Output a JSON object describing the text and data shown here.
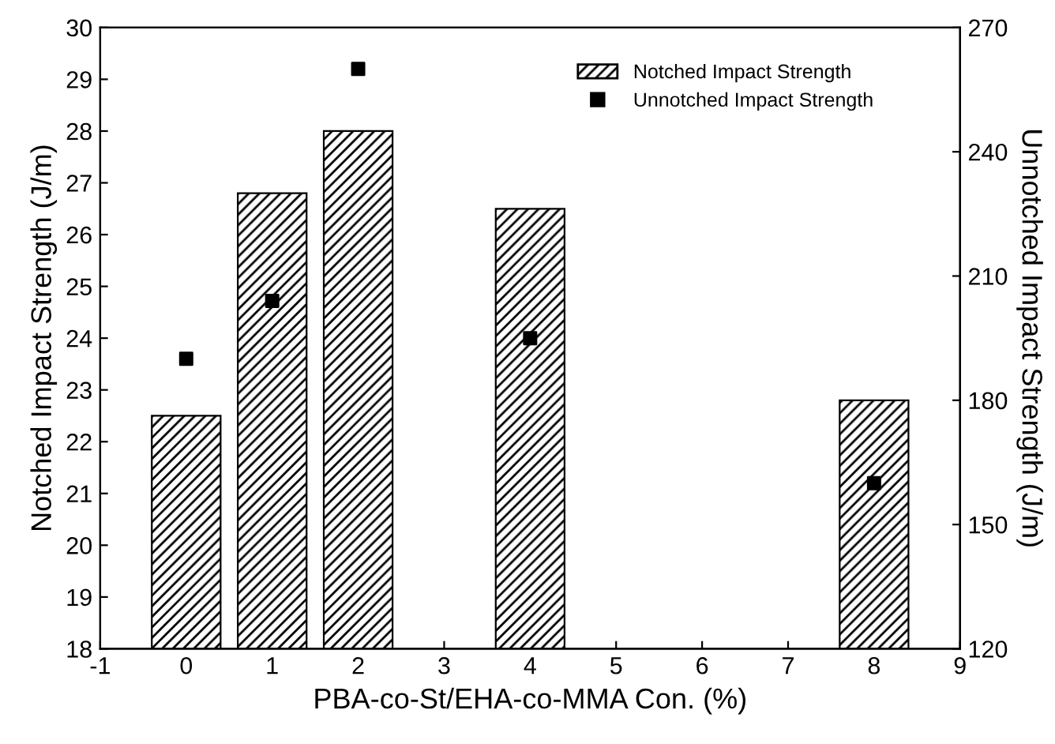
{
  "chart_data": {
    "type": "bar",
    "xlabel": "PBA-co-St/EHA-co-MMA Con. (%)",
    "ylabel": "Notched Impact Strength (J/m)",
    "y2label": "Unnotched Impact Strength (J/m)",
    "x": [
      0,
      1,
      2,
      4,
      8
    ],
    "series": [
      {
        "name": "Notched Impact Strength",
        "color": "#000000",
        "values": [
          22.5,
          26.8,
          28.0,
          26.5,
          22.8
        ]
      },
      {
        "name": "Unnotched Impact Strength",
        "type": "scatter",
        "axis": "y2",
        "color": "#000000",
        "marker": "square",
        "values": [
          190,
          204,
          260,
          195,
          160
        ]
      }
    ],
    "xlim": [
      -1,
      9
    ],
    "xticks": [
      -1,
      0,
      1,
      2,
      3,
      4,
      5,
      6,
      7,
      8,
      9
    ],
    "ylim": [
      18,
      30
    ],
    "yticks": [
      18,
      19,
      20,
      21,
      22,
      23,
      24,
      25,
      26,
      27,
      28,
      29,
      30
    ],
    "y2lim": [
      120,
      270
    ],
    "y2ticks": [
      120,
      150,
      180,
      210,
      240,
      270
    ],
    "legend": "top right",
    "grid": false
  }
}
